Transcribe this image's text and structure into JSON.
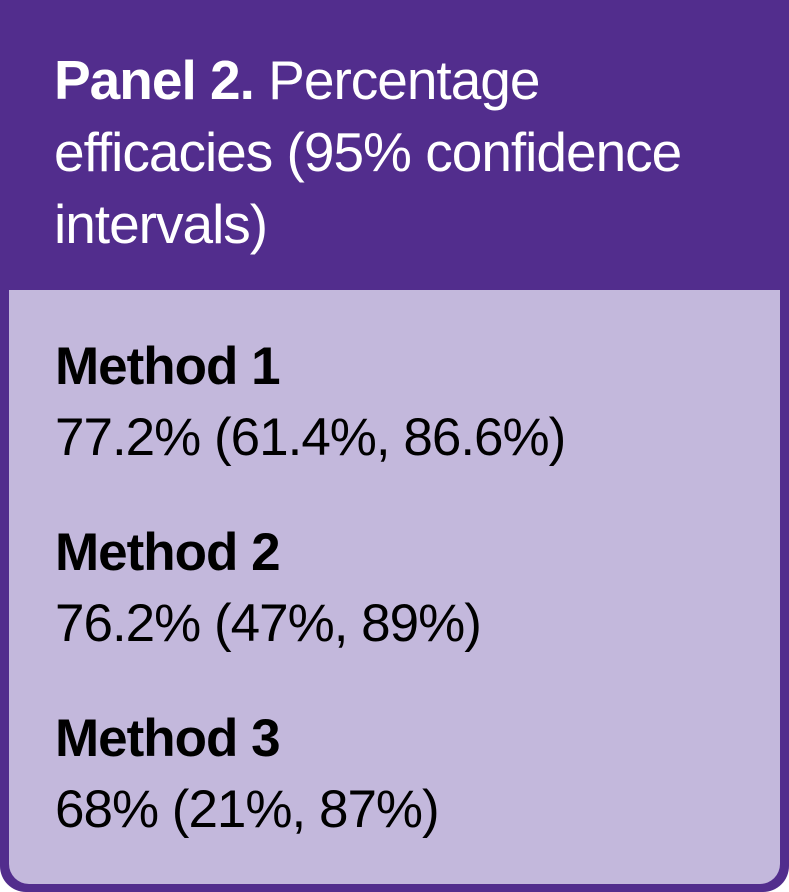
{
  "panel": {
    "title_bold": "Panel 2.",
    "title_rest": " Percentage efficacies (95% confidence intervals)"
  },
  "methods": [
    {
      "name": "Method 1",
      "value": "77.2% (61.4%, 86.6%)"
    },
    {
      "name": "Method 2",
      "value": "76.2% (47%, 89%)"
    },
    {
      "name": "Method 3",
      "value": "68% (21%, 87%)"
    }
  ],
  "colors": {
    "header_background": "#522d8d",
    "body_background": "#c3b8dc",
    "header_text": "#ffffff",
    "body_text": "#000000"
  }
}
